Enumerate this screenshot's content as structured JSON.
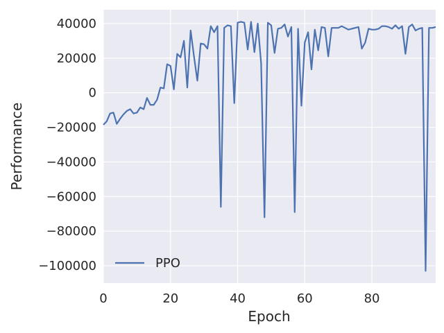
{
  "chart_data": {
    "type": "line",
    "xlabel": "Epoch",
    "ylabel": "Performance",
    "xlim": [
      0,
      99
    ],
    "ylim": [
      -110000,
      48000
    ],
    "x_ticks": [
      0,
      20,
      40,
      60,
      80
    ],
    "x_tick_labels": [
      "0",
      "20",
      "40",
      "60",
      "80"
    ],
    "y_ticks": [
      40000,
      20000,
      0,
      -20000,
      -40000,
      -60000,
      -80000,
      -100000
    ],
    "y_tick_labels": [
      "40000",
      "20000",
      "0",
      "−20000",
      "−40000",
      "−60000",
      "−80000",
      "−100000"
    ],
    "grid": true,
    "legend": "lower-left",
    "background": "#eaeaf2",
    "series": [
      {
        "name": "PPO",
        "color": "#4c72b0",
        "x": [
          0,
          1,
          2,
          3,
          4,
          5,
          6,
          7,
          8,
          9,
          10,
          11,
          12,
          13,
          14,
          15,
          16,
          17,
          18,
          19,
          20,
          21,
          22,
          23,
          24,
          25,
          26,
          27,
          28,
          29,
          30,
          31,
          32,
          33,
          34,
          35,
          36,
          37,
          38,
          39,
          40,
          41,
          42,
          43,
          44,
          45,
          46,
          47,
          48,
          49,
          50,
          51,
          52,
          53,
          54,
          55,
          56,
          57,
          58,
          59,
          60,
          61,
          62,
          63,
          64,
          65,
          66,
          67,
          68,
          69,
          70,
          71,
          72,
          73,
          74,
          75,
          76,
          77,
          78,
          79,
          80,
          81,
          82,
          83,
          84,
          85,
          86,
          87,
          88,
          89,
          90,
          91,
          92,
          93,
          94,
          95,
          96,
          97,
          98,
          99
        ],
        "values": [
          -18500,
          -16500,
          -12000,
          -11500,
          -18000,
          -15000,
          -12500,
          -10500,
          -9500,
          -12000,
          -11500,
          -8500,
          -9500,
          -3000,
          -7000,
          -7000,
          -4000,
          3000,
          2500,
          16500,
          15500,
          2000,
          22500,
          20500,
          30000,
          3000,
          36000,
          21000,
          7000,
          28500,
          28000,
          25500,
          38500,
          35000,
          38500,
          -66000,
          37500,
          39000,
          38500,
          -6000,
          40500,
          41000,
          40500,
          25000,
          41000,
          23500,
          40000,
          17000,
          -72000,
          40500,
          39000,
          23000,
          37000,
          37500,
          39500,
          32500,
          38000,
          -69000,
          37000,
          -7500,
          29000,
          35000,
          13500,
          36500,
          24500,
          38000,
          37500,
          21000,
          37500,
          37500,
          37500,
          38500,
          37500,
          36500,
          37000,
          37500,
          38000,
          25500,
          29000,
          37000,
          36500,
          36500,
          37000,
          38500,
          38500,
          38000,
          37000,
          39000,
          37000,
          38500,
          22500,
          38000,
          39500,
          36000,
          37000,
          37500,
          -103000,
          37500,
          37500,
          38000
        ]
      }
    ]
  }
}
